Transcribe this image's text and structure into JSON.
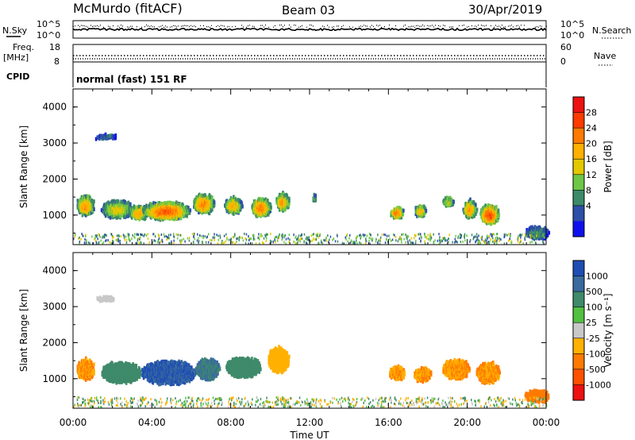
{
  "header": {
    "station": "McMurdo (fitACF)",
    "beam": "Beam 03",
    "date": "30/Apr/2019"
  },
  "noise_panel": {
    "left_label": "N.Sky",
    "right_label": "N.Search",
    "left_top": "10^5",
    "left_bottom": "10^0",
    "right_top": "10^5",
    "right_bottom": "10^0"
  },
  "freq_panel": {
    "left_label_1": "Freq.",
    "left_label_2": "[MHz]",
    "left_top": "18",
    "left_bottom": "8",
    "right_label": "Nave",
    "right_top": "60",
    "right_bottom": "0"
  },
  "cpid_panel": {
    "left_label": "CPID",
    "mode_text": "normal (fast) 151 RF"
  },
  "power_panel": {
    "ylabel": "Slant Range [km]",
    "yticks": [
      "4000",
      "3000",
      "2000",
      "1000"
    ],
    "colorbar_label": "Power [dB]",
    "colorbar_ticks": [
      "28",
      "24",
      "20",
      "16",
      "12",
      "8",
      "4"
    ],
    "colors": [
      "#ee1111",
      "#ff3b00",
      "#ff7a00",
      "#ffb000",
      "#e3c800",
      "#6cc846",
      "#3c8a68",
      "#2d4fa8",
      "#1010ee"
    ]
  },
  "velocity_panel": {
    "ylabel": "Slant Range [km]",
    "yticks": [
      "4000",
      "3000",
      "2000",
      "1000"
    ],
    "colorbar_label": "Velocity [m s⁻¹]",
    "colorbar_ticks": [
      "1000",
      "500",
      "100",
      "25",
      "-25",
      "-100",
      "-500",
      "-1000"
    ],
    "colors": [
      "#1e4eb4",
      "#3a6a9e",
      "#3e8a6a",
      "#52c040",
      "#c8c8c8",
      "#ffb000",
      "#ff7a00",
      "#ff5000",
      "#ee1111"
    ]
  },
  "x_axis": {
    "xlabel": "Time UT",
    "xticks": [
      "00:00",
      "04:00",
      "08:00",
      "12:00",
      "16:00",
      "20:00",
      "00:00"
    ]
  },
  "chart_data": [
    {
      "type": "heatmap",
      "title": "Power [dB]",
      "xlabel": "",
      "ylabel": "Slant Range [km]",
      "xlim": [
        0,
        24
      ],
      "ylim": [
        180,
        4500
      ],
      "clim": [
        0,
        32
      ],
      "blobs": [
        {
          "t": 0.6,
          "r": 1250,
          "dt": 0.45,
          "dr": 280,
          "v": 22
        },
        {
          "t": 1.6,
          "r": 3150,
          "dt": 0.55,
          "dr": 70,
          "v": 6
        },
        {
          "t": 2.2,
          "r": 1150,
          "dt": 0.8,
          "dr": 250,
          "v": 17
        },
        {
          "t": 3.3,
          "r": 1050,
          "dt": 0.5,
          "dr": 200,
          "v": 21
        },
        {
          "t": 4.7,
          "r": 1100,
          "dt": 1.2,
          "dr": 260,
          "v": 26
        },
        {
          "t": 6.6,
          "r": 1300,
          "dt": 0.55,
          "dr": 280,
          "v": 23
        },
        {
          "t": 8.1,
          "r": 1250,
          "dt": 0.45,
          "dr": 220,
          "v": 20
        },
        {
          "t": 9.5,
          "r": 1200,
          "dt": 0.5,
          "dr": 260,
          "v": 24
        },
        {
          "t": 10.6,
          "r": 1350,
          "dt": 0.35,
          "dr": 230,
          "v": 22
        },
        {
          "t": 12.2,
          "r": 1450,
          "dt": 0.1,
          "dr": 120,
          "v": 10
        },
        {
          "t": 16.4,
          "r": 1050,
          "dt": 0.35,
          "dr": 160,
          "v": 24
        },
        {
          "t": 17.6,
          "r": 1100,
          "dt": 0.3,
          "dr": 160,
          "v": 20
        },
        {
          "t": 19.0,
          "r": 1350,
          "dt": 0.3,
          "dr": 140,
          "v": 16
        },
        {
          "t": 20.1,
          "r": 1150,
          "dt": 0.35,
          "dr": 250,
          "v": 22
        },
        {
          "t": 21.1,
          "r": 1000,
          "dt": 0.5,
          "dr": 280,
          "v": 27
        },
        {
          "t": 23.5,
          "r": 500,
          "dt": 0.6,
          "dr": 180,
          "v": 9
        }
      ]
    },
    {
      "type": "heatmap",
      "title": "Velocity [m s⁻¹]",
      "xlabel": "Time UT",
      "ylabel": "Slant Range [km]",
      "xlim": [
        0,
        24
      ],
      "ylim": [
        180,
        4500
      ],
      "clim": [
        -1000,
        1000
      ],
      "blobs": [
        {
          "t": 0.6,
          "r": 1250,
          "dt": 0.45,
          "dr": 280,
          "v": -300
        },
        {
          "t": 1.6,
          "r": 3200,
          "dt": 0.45,
          "dr": 80,
          "v": 0
        },
        {
          "t": 2.4,
          "r": 1150,
          "dt": 1.0,
          "dr": 300,
          "v": 150
        },
        {
          "t": 4.8,
          "r": 1150,
          "dt": 1.4,
          "dr": 330,
          "v": 650
        },
        {
          "t": 6.8,
          "r": 1250,
          "dt": 0.6,
          "dr": 300,
          "v": 300
        },
        {
          "t": 8.6,
          "r": 1300,
          "dt": 0.9,
          "dr": 280,
          "v": 150
        },
        {
          "t": 10.4,
          "r": 1500,
          "dt": 0.55,
          "dr": 350,
          "v": -150
        },
        {
          "t": 16.4,
          "r": 1150,
          "dt": 0.4,
          "dr": 200,
          "v": -300
        },
        {
          "t": 17.7,
          "r": 1100,
          "dt": 0.45,
          "dr": 200,
          "v": -300
        },
        {
          "t": 19.4,
          "r": 1250,
          "dt": 0.7,
          "dr": 280,
          "v": -300
        },
        {
          "t": 21.0,
          "r": 1150,
          "dt": 0.6,
          "dr": 300,
          "v": -300
        },
        {
          "t": 23.5,
          "r": 500,
          "dt": 0.6,
          "dr": 180,
          "v": -400
        }
      ]
    }
  ]
}
